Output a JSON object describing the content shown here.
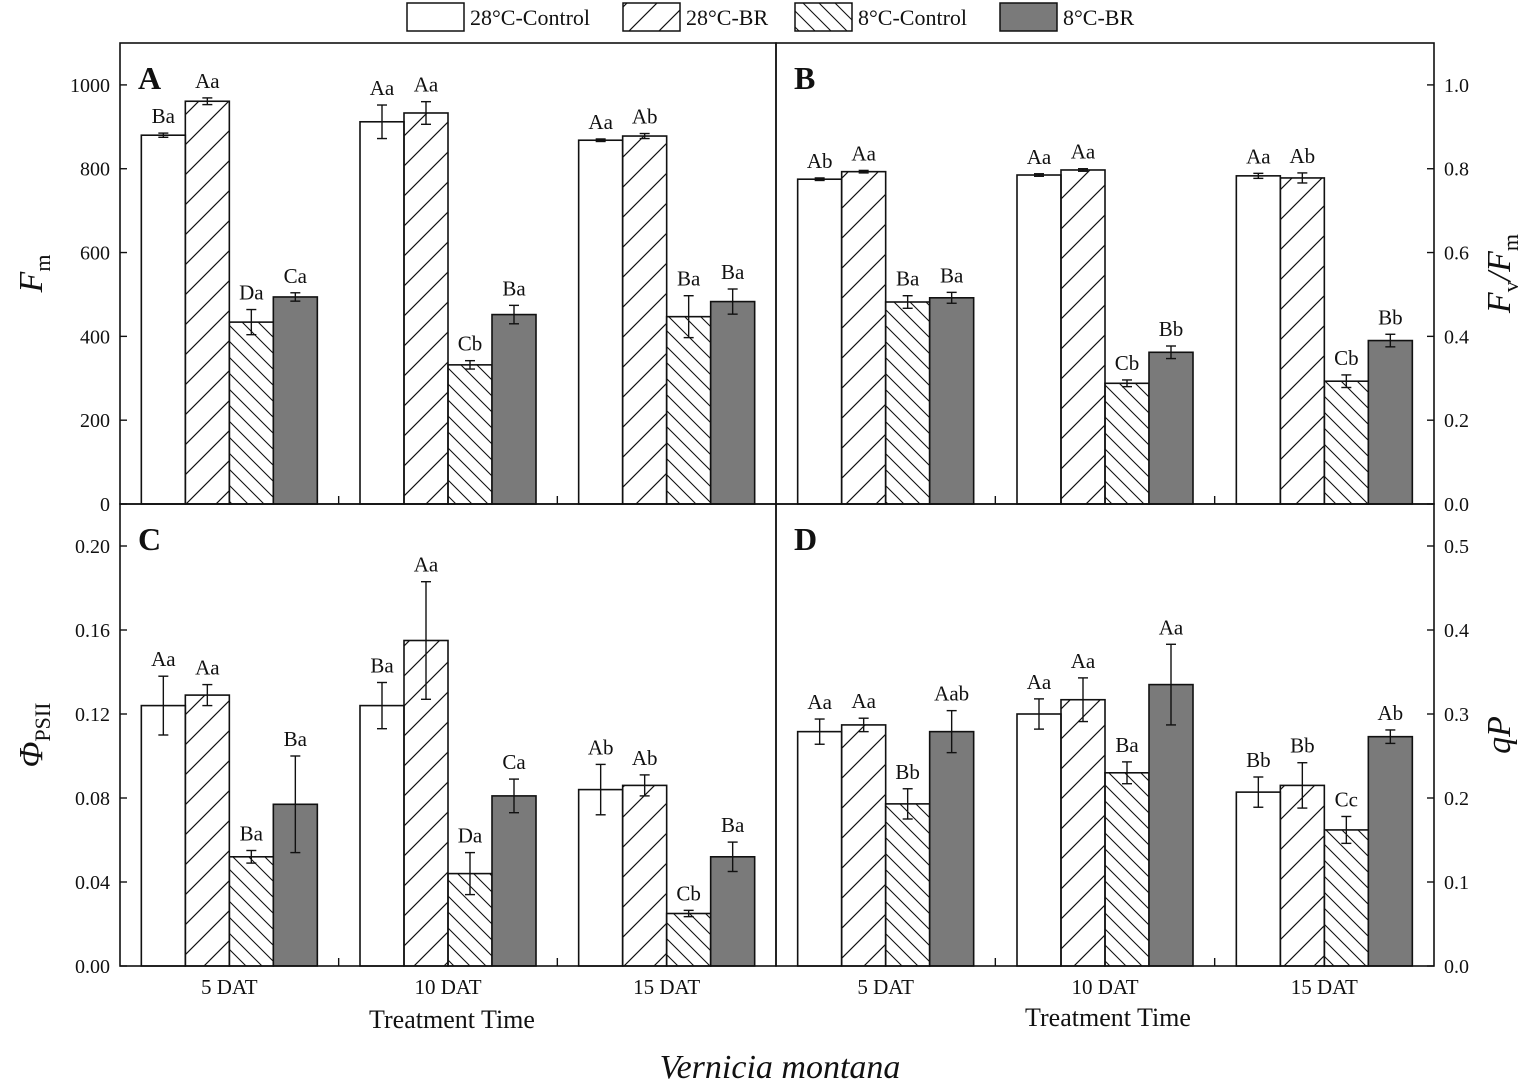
{
  "legend": [
    {
      "label": "28°C-Control",
      "pattern": "white"
    },
    {
      "label": "28°C-BR",
      "pattern": "hatch-forward"
    },
    {
      "label": "8°C-Control",
      "pattern": "hatch-back"
    },
    {
      "label": "8°C-BR",
      "pattern": "gray"
    }
  ],
  "colors": {
    "gray_fill": "#7a7a7a",
    "stroke": "#111111",
    "background": "#ffffff"
  },
  "categories": [
    "5 DAT",
    "10 DAT",
    "15 DAT"
  ],
  "xlabel": "Treatment Time",
  "figure_caption": "Vernicia montana",
  "chart_data": [
    {
      "panel": "A",
      "type": "bar",
      "ylabel_main": "F",
      "ylabel_sub": "m",
      "ylim": [
        0,
        1100
      ],
      "yticks": [
        0,
        200,
        400,
        600,
        800,
        1000
      ],
      "ytick_labels": [
        "0",
        "200",
        "400",
        "600",
        "800",
        "1000"
      ],
      "series": [
        {
          "name": "28°C-Control",
          "values": [
            880,
            912,
            868
          ],
          "errors": [
            5,
            40,
            3
          ],
          "labels": [
            "Ba",
            "Aa",
            "Aa"
          ]
        },
        {
          "name": "28°C-BR",
          "values": [
            961,
            933,
            878
          ],
          "errors": [
            8,
            27,
            6
          ],
          "labels": [
            "Aa",
            "Aa",
            "Ab"
          ]
        },
        {
          "name": "8°C-Control",
          "values": [
            434,
            332,
            447
          ],
          "errors": [
            30,
            10,
            50
          ],
          "labels": [
            "Da",
            "Cb",
            "Ba"
          ]
        },
        {
          "name": "8°C-BR",
          "values": [
            494,
            452,
            483
          ],
          "errors": [
            10,
            22,
            30
          ],
          "labels": [
            "Ca",
            "Ba",
            "Ba"
          ]
        }
      ]
    },
    {
      "panel": "B",
      "type": "bar",
      "ylabel_main": "F",
      "ylabel_sub": "v",
      "ylabel_main2": "/F",
      "ylabel_sub2": "m",
      "ylim": [
        0,
        1.1
      ],
      "yticks": [
        0,
        0.2,
        0.4,
        0.6,
        0.8,
        1.0
      ],
      "ytick_labels": [
        "0.0",
        "0.2",
        "0.4",
        "0.6",
        "0.8",
        "1.0"
      ],
      "series": [
        {
          "name": "28°C-Control",
          "values": [
            0.775,
            0.785,
            0.783
          ],
          "errors": [
            0.003,
            0.003,
            0.006
          ],
          "labels": [
            "Ab",
            "Aa",
            "Aa"
          ]
        },
        {
          "name": "28°C-BR",
          "values": [
            0.793,
            0.797,
            0.778
          ],
          "errors": [
            0.003,
            0.003,
            0.012
          ],
          "labels": [
            "Aa",
            "Aa",
            "Ab"
          ]
        },
        {
          "name": "8°C-Control",
          "values": [
            0.482,
            0.288,
            0.293
          ],
          "errors": [
            0.015,
            0.008,
            0.015
          ],
          "labels": [
            "Ba",
            "Cb",
            "Cb"
          ]
        },
        {
          "name": "8°C-BR",
          "values": [
            0.492,
            0.362,
            0.39
          ],
          "errors": [
            0.013,
            0.015,
            0.015
          ],
          "labels": [
            "Ba",
            "Bb",
            "Bb"
          ]
        }
      ]
    },
    {
      "panel": "C",
      "type": "bar",
      "ylabel_main": "Φ",
      "ylabel_sub": "PSII",
      "ylim": [
        0,
        0.22
      ],
      "yticks": [
        0,
        0.04,
        0.08,
        0.12,
        0.16,
        0.2
      ],
      "ytick_labels": [
        "0.00",
        "0.04",
        "0.08",
        "0.12",
        "0.16",
        "0.20"
      ],
      "series": [
        {
          "name": "28°C-Control",
          "values": [
            0.124,
            0.124,
            0.084
          ],
          "errors": [
            0.014,
            0.011,
            0.012
          ],
          "labels": [
            "Aa",
            "Ba",
            "Ab"
          ]
        },
        {
          "name": "28°C-BR",
          "values": [
            0.129,
            0.155,
            0.086
          ],
          "errors": [
            0.005,
            0.028,
            0.005
          ],
          "labels": [
            "Aa",
            "Aa",
            "Ab"
          ]
        },
        {
          "name": "8°C-Control",
          "values": [
            0.052,
            0.044,
            0.025
          ],
          "errors": [
            0.003,
            0.01,
            0.0015
          ],
          "labels": [
            "Ba",
            "Da",
            "Cb"
          ]
        },
        {
          "name": "8°C-BR",
          "values": [
            0.077,
            0.081,
            0.052
          ],
          "errors": [
            0.023,
            0.008,
            0.007
          ],
          "labels": [
            "Ba",
            "Ca",
            "Ba"
          ]
        }
      ]
    },
    {
      "panel": "D",
      "type": "bar",
      "ylabel_main": "qP",
      "ylim": [
        0,
        0.55
      ],
      "yticks": [
        0,
        0.1,
        0.2,
        0.3,
        0.4,
        0.5
      ],
      "ytick_labels": [
        "0.0",
        "0.1",
        "0.2",
        "0.3",
        "0.4",
        "0.5"
      ],
      "series": [
        {
          "name": "28°C-Control",
          "values": [
            0.279,
            0.3,
            0.207
          ],
          "errors": [
            0.015,
            0.018,
            0.018
          ],
          "labels": [
            "Aa",
            "Aa",
            "Bb"
          ]
        },
        {
          "name": "28°C-BR",
          "values": [
            0.287,
            0.317,
            0.215
          ],
          "errors": [
            0.008,
            0.026,
            0.027
          ],
          "labels": [
            "Aa",
            "Aa",
            "Bb"
          ]
        },
        {
          "name": "8°C-Control",
          "values": [
            0.193,
            0.23,
            0.162
          ],
          "errors": [
            0.018,
            0.013,
            0.016
          ],
          "labels": [
            "Bb",
            "Ba",
            "Cc"
          ]
        },
        {
          "name": "8°C-BR",
          "values": [
            0.279,
            0.335,
            0.273
          ],
          "errors": [
            0.025,
            0.048,
            0.008
          ],
          "labels": [
            "Aab",
            "Aa",
            "Ab"
          ]
        }
      ]
    }
  ]
}
